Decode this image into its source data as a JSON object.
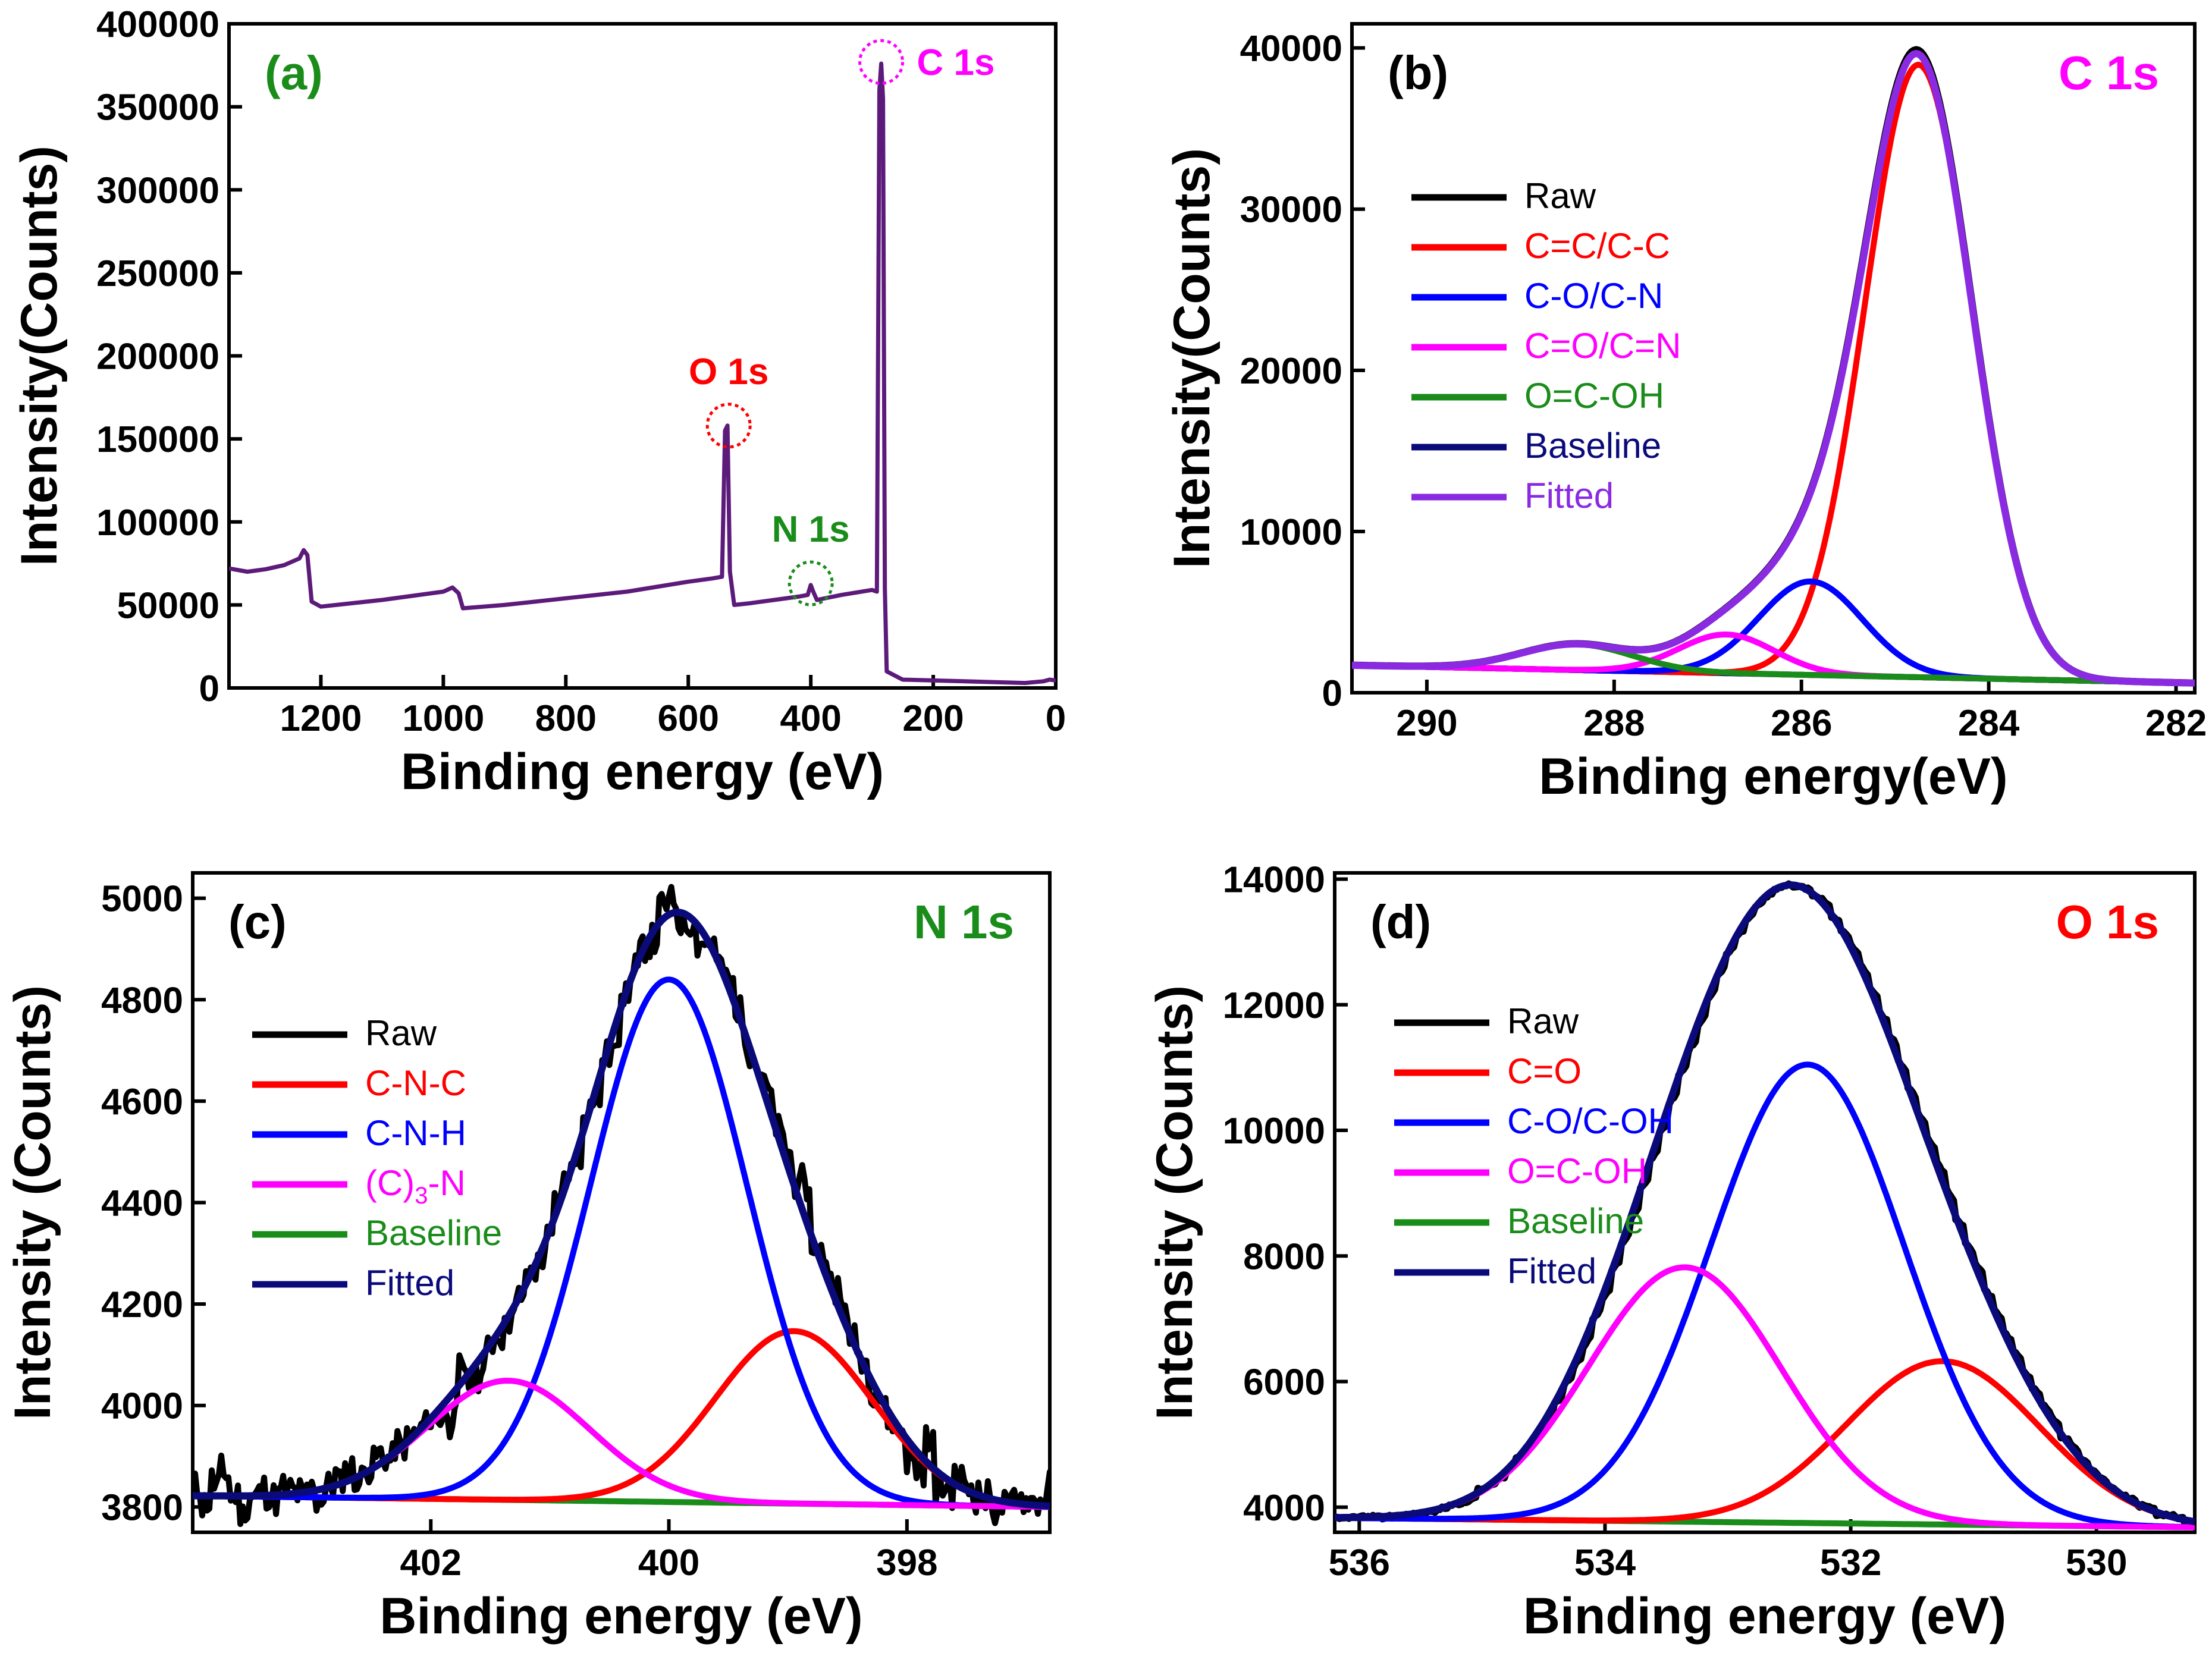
{
  "chart_data": [
    {
      "id": "a",
      "type": "line",
      "panel_label": "(a)",
      "panel_label_color": "#1a8c1a",
      "xlabel": "Binding energy (eV)",
      "ylabel": "Intensity(Counts)",
      "xlim": [
        1350,
        0
      ],
      "ylim": [
        0,
        400000
      ],
      "xticks": [
        1200,
        1000,
        800,
        600,
        400,
        200,
        0
      ],
      "yticks": [
        0,
        50000,
        100000,
        150000,
        200000,
        250000,
        300000,
        350000,
        400000
      ],
      "legend_position": "none",
      "series": [
        {
          "name": "Survey",
          "color": "#5c1a7a",
          "width": 7,
          "points": [
            [
              1350,
              72000
            ],
            [
              1320,
              70000
            ],
            [
              1290,
              71500
            ],
            [
              1260,
              74000
            ],
            [
              1235,
              78000
            ],
            [
              1228,
              83000
            ],
            [
              1222,
              80000
            ],
            [
              1215,
              52000
            ],
            [
              1200,
              49000
            ],
            [
              1100,
              53000
            ],
            [
              1000,
              58000
            ],
            [
              985,
              60500
            ],
            [
              975,
              57000
            ],
            [
              968,
              48000
            ],
            [
              900,
              50000
            ],
            [
              800,
              54000
            ],
            [
              700,
              58000
            ],
            [
              600,
              64000
            ],
            [
              560,
              66000
            ],
            [
              545,
              67000
            ],
            [
              540,
              155000
            ],
            [
              536,
              158000
            ],
            [
              532,
              70000
            ],
            [
              525,
              50000
            ],
            [
              500,
              51000
            ],
            [
              460,
              53000
            ],
            [
              420,
              55000
            ],
            [
              405,
              56000
            ],
            [
              400,
              62000
            ],
            [
              396,
              58000
            ],
            [
              390,
              53000
            ],
            [
              350,
              56000
            ],
            [
              300,
              59000
            ],
            [
              292,
              58000
            ],
            [
              288,
              360000
            ],
            [
              285,
              376000
            ],
            [
              282,
              355000
            ],
            [
              279,
              60000
            ],
            [
              276,
              10000
            ],
            [
              250,
              5000
            ],
            [
              150,
              4000
            ],
            [
              50,
              3000
            ],
            [
              20,
              4000
            ],
            [
              10,
              5000
            ],
            [
              0,
              4500
            ]
          ]
        }
      ],
      "annotations": [
        {
          "text": "C 1s",
          "x": 285,
          "y": 377000,
          "color": "#ff00ff",
          "side": "right"
        },
        {
          "text": "O 1s",
          "x": 534,
          "y": 158000,
          "color": "#ff0000",
          "side": "above"
        },
        {
          "text": "N 1s",
          "x": 400,
          "y": 63000,
          "color": "#1a8c1a",
          "side": "above"
        }
      ]
    },
    {
      "id": "b",
      "type": "line",
      "panel_label": "(b)",
      "panel_label_color": "#000000",
      "title": "C 1s",
      "title_color": "#ff00ff",
      "xlabel": "Binding energy(eV)",
      "ylabel": "Intensity(Counts)",
      "xlim": [
        290.8,
        281.8
      ],
      "ylim": [
        0,
        41500
      ],
      "xticks": [
        290,
        288,
        286,
        284,
        282
      ],
      "yticks": [
        0,
        10000,
        20000,
        30000,
        40000
      ],
      "legend_position": "center-left",
      "baseline": {
        "x0": 290.8,
        "y0": 1700,
        "x1": 281.8,
        "y1": 600
      },
      "series": [
        {
          "name": "Raw",
          "color": "#000000",
          "width": 12,
          "kind": "raw"
        },
        {
          "name": "C=C/C-C",
          "color": "#ff0000",
          "width": 10,
          "kind": "peak",
          "center": 284.75,
          "amplitude": 38000,
          "fwhm": 1.35
        },
        {
          "name": "C-O/C-N",
          "color": "#0000ff",
          "width": 10,
          "kind": "peak",
          "center": 285.9,
          "amplitude": 5800,
          "fwhm": 1.3
        },
        {
          "name": "C=O/C=N",
          "color": "#ff00ff",
          "width": 10,
          "kind": "peak",
          "center": 286.8,
          "amplitude": 2400,
          "fwhm": 1.2
        },
        {
          "name": "O=C-OH",
          "color": "#1a8c1a",
          "width": 10,
          "kind": "peak",
          "center": 288.4,
          "amplitude": 1600,
          "fwhm": 1.4
        },
        {
          "name": "Baseline",
          "color": "#0a0a7a",
          "width": 10,
          "kind": "baseline"
        },
        {
          "name": "Fitted",
          "color": "#8a2be2",
          "width": 12,
          "kind": "fit"
        }
      ]
    },
    {
      "id": "c",
      "type": "line",
      "panel_label": "(c)",
      "panel_label_color": "#000000",
      "title": "N 1s",
      "title_color": "#1a8c1a",
      "xlabel": "Binding energy (eV)",
      "ylabel": "Intensity (Counts)",
      "xlim": [
        404,
        396.8
      ],
      "ylim": [
        3750,
        5050
      ],
      "xticks": [
        402,
        400,
        398
      ],
      "yticks": [
        3800,
        4000,
        4200,
        4400,
        4600,
        4800,
        5000
      ],
      "legend_position": "center-left",
      "baseline": {
        "x0": 404,
        "y0": 3822,
        "x1": 396.8,
        "y1": 3800
      },
      "series": [
        {
          "name": "Raw",
          "color": "#000000",
          "width": 10,
          "kind": "raw",
          "noise": 55,
          "seed": 11
        },
        {
          "name": "C-N-C",
          "color": "#ff0000",
          "width": 10,
          "kind": "peak",
          "center": 398.95,
          "amplitude": 340,
          "fwhm": 1.55
        },
        {
          "name": "C-N-H",
          "color": "#0000ff",
          "width": 10,
          "kind": "peak",
          "center": 400.0,
          "amplitude": 1030,
          "fwhm": 1.55
        },
        {
          "name": "(C)3-N",
          "label_parts": [
            "(C)",
            "3",
            "-N"
          ],
          "color": "#ff00ff",
          "width": 10,
          "kind": "peak",
          "center": 401.35,
          "amplitude": 235,
          "fwhm": 1.6
        },
        {
          "name": "Baseline",
          "color": "#1a8c1a",
          "width": 10,
          "kind": "baseline"
        },
        {
          "name": "Fitted",
          "color": "#0a0a7a",
          "width": 12,
          "kind": "fit"
        }
      ]
    },
    {
      "id": "d",
      "type": "line",
      "panel_label": "(d)",
      "panel_label_color": "#000000",
      "title": "O 1s",
      "title_color": "#ff0000",
      "xlabel": "Binding energy (eV)",
      "ylabel": "Intensity (Counts)",
      "xlim": [
        536.2,
        529.2
      ],
      "ylim": [
        3600,
        14100
      ],
      "xticks": [
        536,
        534,
        532,
        530
      ],
      "yticks": [
        4000,
        6000,
        8000,
        10000,
        12000,
        14000
      ],
      "legend_position": "center-left",
      "baseline": {
        "x0": 536.2,
        "y0": 3830,
        "x1": 529.2,
        "y1": 3680
      },
      "series": [
        {
          "name": "Raw",
          "color": "#000000",
          "width": 12,
          "kind": "raw",
          "noise": 45,
          "seed": 7
        },
        {
          "name": "C=O",
          "color": "#ff0000",
          "width": 10,
          "kind": "peak",
          "center": 531.25,
          "amplitude": 2600,
          "fwhm": 1.85
        },
        {
          "name": "C-O/C-OH",
          "color": "#0000ff",
          "width": 10,
          "kind": "peak",
          "center": 532.35,
          "amplitude": 7300,
          "fwhm": 1.85
        },
        {
          "name": "O=C-OH",
          "color": "#ff00ff",
          "width": 10,
          "kind": "peak",
          "center": 533.35,
          "amplitude": 4050,
          "fwhm": 1.85
        },
        {
          "name": "Baseline",
          "color": "#1a8c1a",
          "width": 10,
          "kind": "baseline"
        },
        {
          "name": "Fitted",
          "color": "#0a0a7a",
          "width": 12,
          "kind": "fit"
        }
      ]
    }
  ]
}
